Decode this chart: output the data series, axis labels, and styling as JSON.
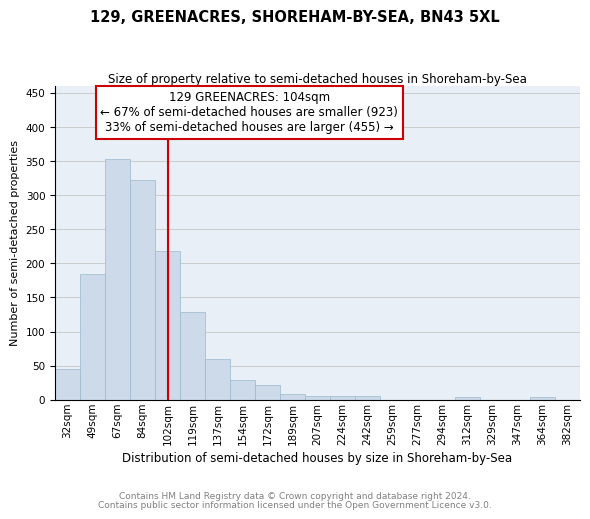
{
  "title": "129, GREENACRES, SHOREHAM-BY-SEA, BN43 5XL",
  "subtitle": "Size of property relative to semi-detached houses in Shoreham-by-Sea",
  "xlabel": "Distribution of semi-detached houses by size in Shoreham-by-Sea",
  "ylabel": "Number of semi-detached properties",
  "footnote1": "Contains HM Land Registry data © Crown copyright and database right 2024.",
  "footnote2": "Contains public sector information licensed under the Open Government Licence v3.0.",
  "annotation_title": "129 GREENACRES: 104sqm",
  "annotation_line1": "← 67% of semi-detached houses are smaller (923)",
  "annotation_line2": "33% of semi-detached houses are larger (455) →",
  "bar_color": "#ccdaea",
  "bar_edge_color": "#9ab8cc",
  "bg_color": "#e8eff7",
  "grid_color": "#cccccc",
  "annotation_edge_color": "#cc0000",
  "marker_line_color": "#cc0000",
  "bin_labels": [
    "32sqm",
    "49sqm",
    "67sqm",
    "84sqm",
    "102sqm",
    "119sqm",
    "137sqm",
    "154sqm",
    "172sqm",
    "189sqm",
    "207sqm",
    "224sqm",
    "242sqm",
    "259sqm",
    "277sqm",
    "294sqm",
    "312sqm",
    "329sqm",
    "347sqm",
    "364sqm",
    "382sqm"
  ],
  "counts": [
    45,
    185,
    353,
    323,
    218,
    128,
    60,
    29,
    22,
    9,
    5,
    5,
    5,
    0,
    0,
    0,
    4,
    0,
    0,
    4
  ],
  "marker_tick_index": 4,
  "ylim": [
    0,
    460
  ],
  "yticks": [
    0,
    50,
    100,
    150,
    200,
    250,
    300,
    350,
    400,
    450
  ],
  "title_fontsize": 10.5,
  "subtitle_fontsize": 8.5,
  "xlabel_fontsize": 8.5,
  "ylabel_fontsize": 8,
  "tick_fontsize": 7.5,
  "annot_fontsize": 8.5
}
